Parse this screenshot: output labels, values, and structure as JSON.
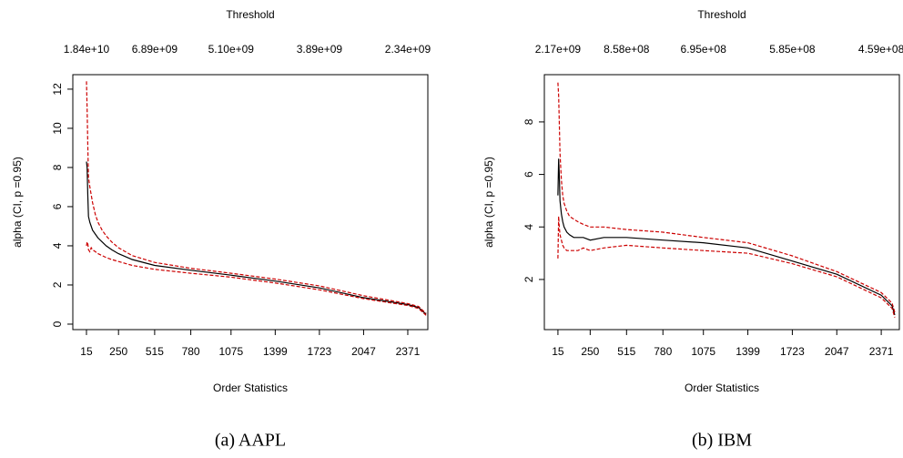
{
  "chart_data": [
    {
      "type": "line",
      "title": "Threshold",
      "xlabel": "Order Statistics",
      "ylabel": "alpha (CI, p =0.95)",
      "caption": "(a) AAPL",
      "x": [
        15,
        20,
        25,
        30,
        40,
        50,
        60,
        80,
        100,
        130,
        160,
        200,
        250,
        350,
        515,
        780,
        1075,
        1399,
        1723,
        2047,
        2371,
        2450,
        2505
      ],
      "series": [
        {
          "name": "alpha",
          "color": "#000000",
          "dash": false,
          "values": [
            8.3,
            8.0,
            6.5,
            5.5,
            5.2,
            5.0,
            4.8,
            4.6,
            4.4,
            4.2,
            4.0,
            3.8,
            3.6,
            3.3,
            3.0,
            2.75,
            2.5,
            2.2,
            1.85,
            1.35,
            1.0,
            0.85,
            0.5
          ]
        },
        {
          "name": "upper",
          "color": "#cc0000",
          "dash": true,
          "values": [
            12.4,
            11,
            9,
            7.5,
            7.0,
            6.6,
            6.2,
            5.6,
            5.2,
            4.8,
            4.5,
            4.2,
            3.9,
            3.5,
            3.15,
            2.85,
            2.6,
            2.3,
            1.95,
            1.45,
            1.05,
            0.9,
            0.55
          ]
        },
        {
          "name": "lower",
          "color": "#cc0000",
          "dash": true,
          "values": [
            4.0,
            4.2,
            4.1,
            3.8,
            3.7,
            3.9,
            3.8,
            3.7,
            3.6,
            3.5,
            3.4,
            3.3,
            3.2,
            3.0,
            2.8,
            2.6,
            2.4,
            2.1,
            1.75,
            1.3,
            0.95,
            0.8,
            0.45
          ]
        }
      ],
      "xlim": [
        -85,
        2518
      ],
      "ylim": [
        -0.28,
        12.74
      ],
      "xticks": [
        15,
        250,
        515,
        780,
        1075,
        1399,
        1723,
        2047,
        2371
      ],
      "x2ticks": [
        {
          "value": 15,
          "label": "1.84e+10"
        },
        {
          "value": 515,
          "label": "6.89e+09"
        },
        {
          "value": 1075,
          "label": "5.10e+09"
        },
        {
          "value": 1723,
          "label": "3.89e+09"
        },
        {
          "value": 2371,
          "label": "2.34e+09"
        }
      ],
      "yticks": [
        0,
        2,
        4,
        6,
        8,
        10,
        12
      ]
    },
    {
      "type": "line",
      "title": "Threshold",
      "xlabel": "Order Statistics",
      "ylabel": "alpha (CI, p =0.95)",
      "caption": "(b) IBM",
      "x": [
        15,
        20,
        25,
        30,
        40,
        50,
        60,
        80,
        100,
        130,
        160,
        200,
        250,
        350,
        515,
        780,
        1075,
        1399,
        1723,
        2047,
        2371,
        2450,
        2470
      ],
      "series": [
        {
          "name": "alpha",
          "color": "#000000",
          "dash": false,
          "values": [
            5.2,
            6.6,
            6.0,
            5.0,
            4.5,
            4.2,
            4.0,
            3.8,
            3.7,
            3.6,
            3.6,
            3.6,
            3.5,
            3.6,
            3.6,
            3.5,
            3.4,
            3.2,
            2.7,
            2.2,
            1.4,
            1.0,
            0.65
          ]
        },
        {
          "name": "upper",
          "color": "#cc0000",
          "dash": true,
          "values": [
            9.5,
            9.0,
            8.0,
            6.8,
            5.8,
            5.2,
            4.9,
            4.6,
            4.4,
            4.3,
            4.2,
            4.1,
            4.0,
            4.0,
            3.9,
            3.8,
            3.6,
            3.4,
            2.9,
            2.3,
            1.5,
            1.1,
            0.75
          ]
        },
        {
          "name": "lower",
          "color": "#cc0000",
          "dash": true,
          "values": [
            2.8,
            4.4,
            4.0,
            3.7,
            3.5,
            3.3,
            3.2,
            3.1,
            3.1,
            3.1,
            3.1,
            3.2,
            3.1,
            3.2,
            3.3,
            3.2,
            3.1,
            3.0,
            2.6,
            2.1,
            1.3,
            0.9,
            0.55
          ]
        }
      ],
      "xlim": [
        -84,
        2503
      ],
      "ylim": [
        0.09,
        9.8
      ],
      "xticks": [
        15,
        250,
        515,
        780,
        1075,
        1399,
        1723,
        2047,
        2371
      ],
      "x2ticks": [
        {
          "value": 15,
          "label": "2.17e+09"
        },
        {
          "value": 515,
          "label": "8.58e+08"
        },
        {
          "value": 1075,
          "label": "6.95e+08"
        },
        {
          "value": 1723,
          "label": "5.85e+08"
        },
        {
          "value": 2371,
          "label": "4.59e+08"
        }
      ],
      "yticks": [
        2,
        4,
        6,
        8
      ]
    }
  ]
}
